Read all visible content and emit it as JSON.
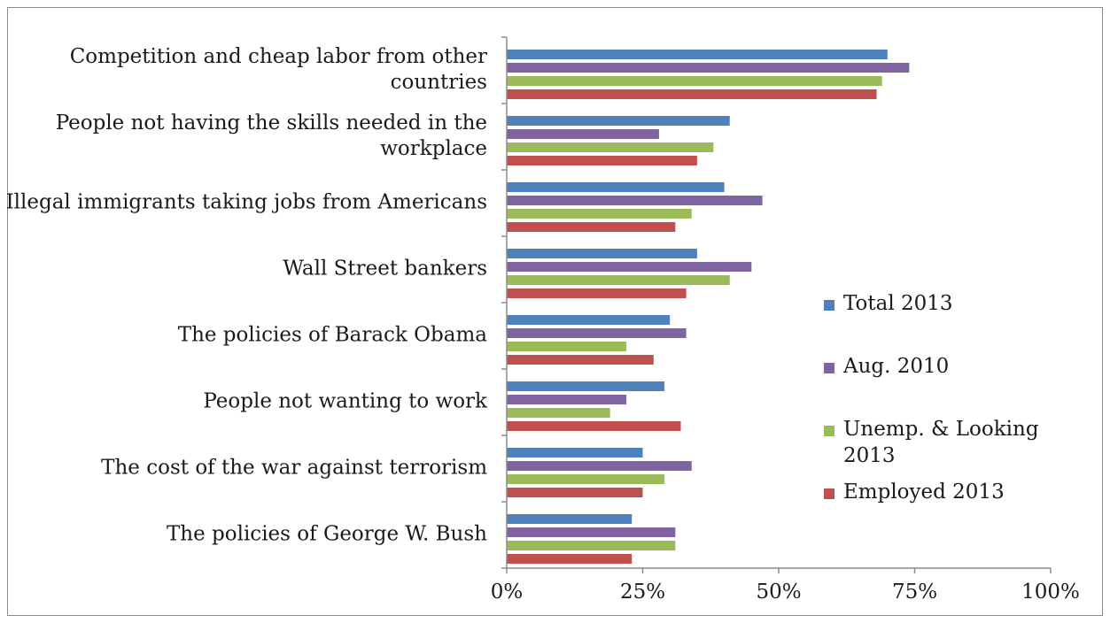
{
  "chart_data": {
    "type": "bar",
    "orientation": "horizontal",
    "categories": [
      "Competition and cheap labor from other countries",
      "People not having the skills needed in the workplace",
      "Illegal immigrants taking jobs from Americans",
      "Wall Street bankers",
      "The policies of Barack Obama",
      "People not wanting to work",
      "The cost of the war against terrorism",
      "The policies of George W. Bush"
    ],
    "category_lines": [
      [
        "Competition and cheap labor from other",
        "countries"
      ],
      [
        "People not having the skills needed in the",
        "workplace"
      ],
      [
        "Illegal immigrants taking jobs from Americans"
      ],
      [
        "Wall Street bankers"
      ],
      [
        "The policies of Barack Obama"
      ],
      [
        "People not wanting to work"
      ],
      [
        "The cost of the war against terrorism"
      ],
      [
        "The policies of George W. Bush"
      ]
    ],
    "series": [
      {
        "name": "Total 2013",
        "color": "#4f81bd",
        "values": [
          70,
          41,
          40,
          35,
          30,
          29,
          25,
          23
        ]
      },
      {
        "name": "Aug. 2010",
        "color": "#8064a2",
        "values": [
          74,
          28,
          47,
          45,
          33,
          22,
          34,
          31
        ]
      },
      {
        "name": "Unemp. & Looking 2013",
        "color": "#9bbb59",
        "values": [
          69,
          38,
          34,
          41,
          22,
          19,
          29,
          31
        ]
      },
      {
        "name": "Employed 2013",
        "color": "#c0504d",
        "values": [
          68,
          35,
          31,
          33,
          27,
          32,
          25,
          23
        ]
      }
    ],
    "legend_lines": [
      [
        "Total 2013"
      ],
      [
        "Aug. 2010"
      ],
      [
        "Unemp. & Looking",
        "2013"
      ],
      [
        "Employed 2013"
      ]
    ],
    "xlim": [
      0,
      100
    ],
    "xticks": [
      "0%",
      "25%",
      "50%",
      "75%",
      "100%"
    ],
    "grid": false,
    "legend_position": "right"
  }
}
